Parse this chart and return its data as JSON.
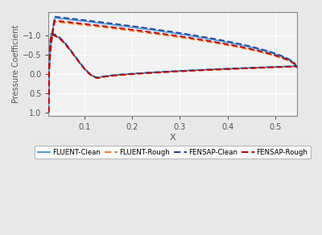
{
  "title": "",
  "xlabel": "X",
  "ylabel": "Pressure Coefficient",
  "xlim": [
    0.025,
    0.545
  ],
  "ylim": [
    1.1,
    -1.6
  ],
  "xticks": [
    0.1,
    0.2,
    0.3,
    0.4,
    0.5
  ],
  "yticks": [
    -1.0,
    -0.5,
    0.0,
    0.5,
    1.0
  ],
  "colors": {
    "fluent_clean": "#5B9BD5",
    "fluent_rough": "#ED7D31",
    "fensap_clean": "#2347A0",
    "fensap_rough": "#C00000"
  },
  "lw": 1.3,
  "legend_labels": [
    "FLUENT-Clean",
    "FLUENT-Rough",
    "FENSAP-Clean",
    "FENSAP-Rough"
  ],
  "background_color": "#F2F2F2",
  "fig_color": "#E8E8E8",
  "grid_color": "#FFFFFF"
}
